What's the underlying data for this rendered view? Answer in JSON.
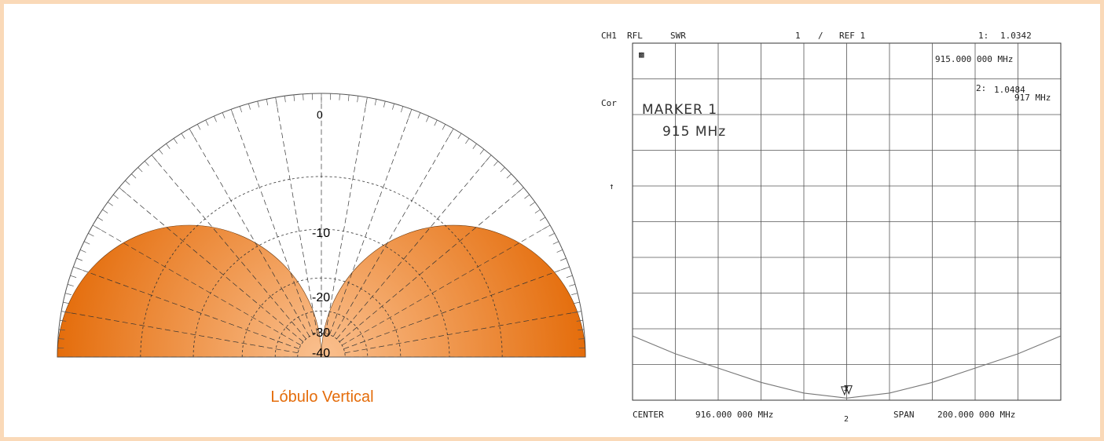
{
  "colors": {
    "border": "#fad9b8",
    "lobe_edge": "#e46c0a",
    "lobe_center": "#fac08f",
    "caption": "#e46c0a"
  },
  "polar": {
    "caption": "Lóbulo Vertical",
    "ring_labels": [
      "0",
      "-10",
      "-20",
      "-30",
      "-40"
    ]
  },
  "swr": {
    "header": {
      "ch": "CH1",
      "rfl": "RFL",
      "swr": "SWR",
      "scale": "1",
      "slash": "/",
      "ref": "REF 1",
      "m1_label": "1:",
      "m1_value": "1.0342",
      "m1_freq": "915.000 000 MHz",
      "m2_label": "2:",
      "m2_value": "1.0484",
      "m2_freq": "917 MHz"
    },
    "side_cor": "Cor",
    "side_arrow": "↑",
    "mini_box": "▩",
    "note_line1": "MARKER 1",
    "note_line2": "915 MHz",
    "footer": {
      "center": "CENTER",
      "center_value": "916.000 000 MHz",
      "span": "SPAN",
      "span_value": "200.000 000 MHz"
    },
    "marker_labels": [
      "1",
      "2"
    ]
  },
  "chart_data": [
    {
      "type": "polar",
      "subtitle": "Lóbulo Vertical",
      "radial_ticks": [
        0,
        -10,
        -20,
        -30,
        -40
      ],
      "series": [
        {
          "angles_deg_from_zenith": [
            -90,
            -75,
            -60,
            -45,
            -30,
            -15,
            0,
            15,
            30,
            45,
            60,
            75,
            90
          ],
          "values_db": [
            -2,
            -2,
            -2.5,
            -3.5,
            -6,
            -12,
            -40,
            -12,
            -6,
            -3.5,
            -2.5,
            -2,
            -2
          ]
        }
      ]
    },
    {
      "type": "line",
      "header": "SWR",
      "xlabel": "CENTER 916.000 000 MHz  SPAN 200.000 000 MHz",
      "x_range_mhz": [
        816,
        1016
      ],
      "series": [
        {
          "x": [
            816,
            836,
            856,
            876,
            896,
            916,
            936,
            956,
            976,
            996,
            1016
          ],
          "swr": [
            1.9,
            1.65,
            1.45,
            1.25,
            1.1,
            1.03,
            1.1,
            1.25,
            1.45,
            1.65,
            1.9
          ]
        }
      ],
      "markers": [
        {
          "label": "1",
          "freq_mhz": 915,
          "swr": 1.0342
        },
        {
          "label": "2",
          "freq_mhz": 917,
          "swr": 1.0484
        }
      ]
    }
  ]
}
